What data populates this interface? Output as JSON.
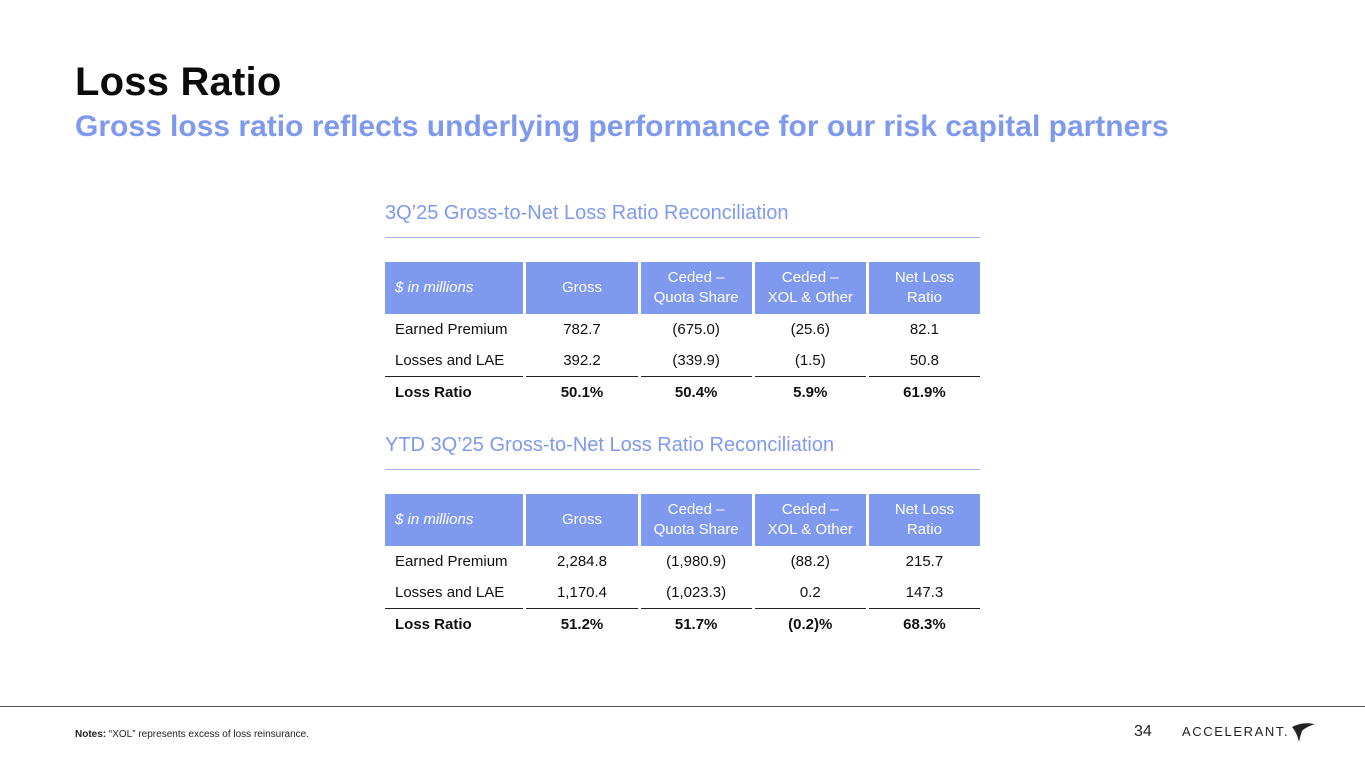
{
  "header": {
    "title": "Loss Ratio",
    "subtitle": "Gross loss ratio reflects underlying performance for our risk capital partners"
  },
  "tables": [
    {
      "title": "3Q’25 Gross-to-Net Loss Ratio Reconciliation",
      "headers": [
        "$ in millions",
        "Gross",
        "Ceded –\nQuota Share",
        "Ceded –\nXOL & Other",
        "Net Loss\nRatio"
      ],
      "rows": [
        [
          "Earned Premium",
          "782.7",
          "(675.0)",
          "(25.6)",
          "82.1"
        ],
        [
          "Losses and LAE",
          "392.2",
          "(339.9)",
          "(1.5)",
          "50.8"
        ]
      ],
      "total": [
        "Loss Ratio",
        "50.1%",
        "50.4%",
        "5.9%",
        "61.9%"
      ]
    },
    {
      "title": "YTD 3Q’25 Gross-to-Net Loss Ratio Reconciliation",
      "headers": [
        "$ in millions",
        "Gross",
        "Ceded –\nQuota Share",
        "Ceded –\nXOL & Other",
        "Net Loss\nRatio"
      ],
      "rows": [
        [
          "Earned Premium",
          "2,284.8",
          "(1,980.9)",
          "(88.2)",
          "215.7"
        ],
        [
          "Losses and LAE",
          "1,170.4",
          "(1,023.3)",
          "0.2",
          "147.3"
        ]
      ],
      "total": [
        "Loss Ratio",
        "51.2%",
        "51.7%",
        "(0.2)%",
        "68.3%"
      ]
    }
  ],
  "footer": {
    "notes_label": "Notes:",
    "notes_text": " “XOL” represents excess of loss reinsurance.",
    "page_number": "34",
    "logo_text": "ACCELERANT."
  },
  "colors": {
    "accent": "#7f99ef",
    "text": "#111111"
  }
}
